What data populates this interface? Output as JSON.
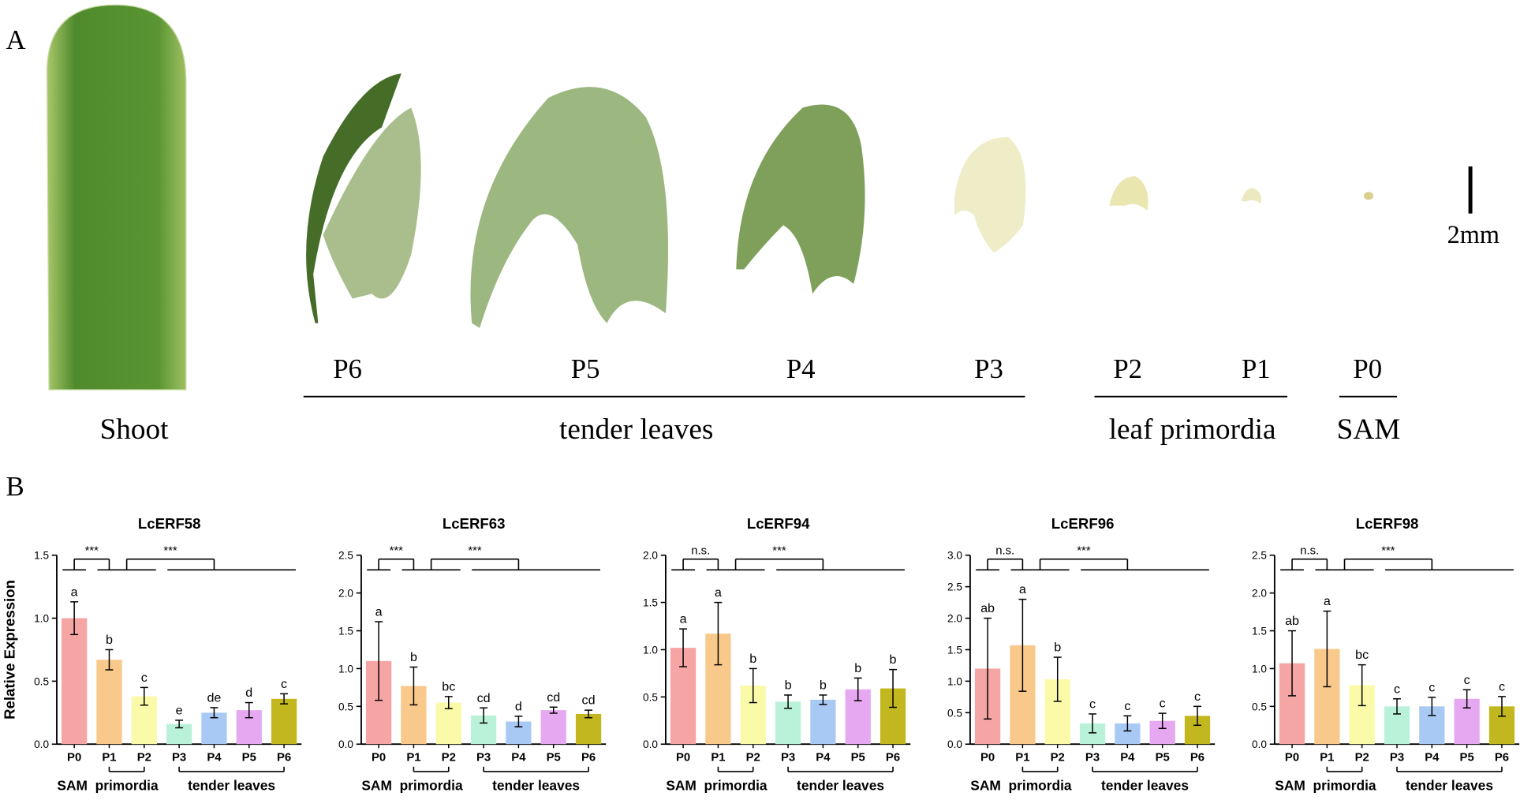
{
  "panel_a": {
    "label": "A",
    "scale_bar": "2mm",
    "stage_labels": [
      "P6",
      "P5",
      "P4",
      "P3",
      "P2",
      "P1",
      "P0"
    ],
    "group_labels": [
      "Shoot",
      "tender leaves",
      "leaf primordia",
      "SAM"
    ]
  },
  "panel_b": {
    "label": "B"
  },
  "chart_data": [
    {
      "type": "bar",
      "title": "LcERF58",
      "y_label": "Relative Expression",
      "categories": [
        "P0",
        "P1",
        "P2",
        "P3",
        "P4",
        "P5",
        "P6"
      ],
      "values": [
        1.0,
        0.67,
        0.38,
        0.16,
        0.25,
        0.27,
        0.36
      ],
      "errors": [
        0.13,
        0.08,
        0.07,
        0.03,
        0.04,
        0.06,
        0.04
      ],
      "letters": [
        "a",
        "b",
        "c",
        "e",
        "de",
        "d",
        "c"
      ],
      "colors": [
        "#f6a5a5",
        "#f9c98c",
        "#fbfaa9",
        "#b9f1d9",
        "#a9c9f5",
        "#e6a9f1",
        "#c3b71f"
      ],
      "ylim": [
        0,
        1.5
      ],
      "yticks": [
        {
          "value": 0,
          "label": "0.0"
        },
        0.5,
        {
          "value": 1,
          "label": "1.0"
        },
        1.5
      ],
      "significance": [
        "***",
        "***"
      ],
      "group_labels": [
        "SAM",
        "primordia",
        "tender leaves"
      ]
    },
    {
      "type": "bar",
      "title": "LcERF63",
      "categories": [
        "P0",
        "P1",
        "P2",
        "P3",
        "P4",
        "P5",
        "P6"
      ],
      "values": [
        1.1,
        0.77,
        0.55,
        0.38,
        0.3,
        0.45,
        0.4
      ],
      "errors": [
        0.52,
        0.25,
        0.08,
        0.1,
        0.07,
        0.04,
        0.05
      ],
      "letters": [
        "a",
        "b",
        "bc",
        "cd",
        "d",
        "cd",
        "cd"
      ],
      "colors": [
        "#f6a5a5",
        "#f9c98c",
        "#fbfaa9",
        "#b9f1d9",
        "#a9c9f5",
        "#e6a9f1",
        "#c3b71f"
      ],
      "ylim": [
        0,
        2.5
      ],
      "yticks": [
        {
          "value": 0,
          "label": "0.0"
        },
        0.5,
        {
          "value": 1,
          "label": "1.0"
        },
        1.5,
        {
          "value": 2,
          "label": "2.0"
        },
        2.5
      ],
      "significance": [
        "***",
        "***"
      ],
      "group_labels": [
        "SAM",
        "primordia",
        "tender leaves"
      ]
    },
    {
      "type": "bar",
      "title": "LcERF94",
      "categories": [
        "P0",
        "P1",
        "P2",
        "P3",
        "P4",
        "P5",
        "P6"
      ],
      "values": [
        1.02,
        1.17,
        0.62,
        0.45,
        0.47,
        0.58,
        0.59
      ],
      "errors": [
        0.2,
        0.33,
        0.18,
        0.07,
        0.05,
        0.12,
        0.2
      ],
      "letters": [
        "a",
        "a",
        "b",
        "b",
        "b",
        "b",
        "b"
      ],
      "colors": [
        "#f6a5a5",
        "#f9c98c",
        "#fbfaa9",
        "#b9f1d9",
        "#a9c9f5",
        "#e6a9f1",
        "#c3b71f"
      ],
      "ylim": [
        0,
        2
      ],
      "yticks": [
        {
          "value": 0,
          "label": "0.0"
        },
        0.5,
        {
          "value": 1,
          "label": "1.0"
        },
        1.5,
        {
          "value": 2,
          "label": "2.0"
        }
      ],
      "significance": [
        "n.s.",
        "***"
      ],
      "group_labels": [
        "SAM",
        "primordia",
        "tender leaves"
      ]
    },
    {
      "type": "bar",
      "title": "LcERF96",
      "categories": [
        "P0",
        "P1",
        "P2",
        "P3",
        "P4",
        "P5",
        "P6"
      ],
      "values": [
        1.2,
        1.57,
        1.03,
        0.33,
        0.33,
        0.37,
        0.45
      ],
      "errors": [
        0.8,
        0.73,
        0.35,
        0.15,
        0.12,
        0.12,
        0.15
      ],
      "letters": [
        "ab",
        "a",
        "b",
        "c",
        "c",
        "c",
        "c"
      ],
      "colors": [
        "#f6a5a5",
        "#f9c98c",
        "#fbfaa9",
        "#b9f1d9",
        "#a9c9f5",
        "#e6a9f1",
        "#c3b71f"
      ],
      "ylim": [
        0,
        3
      ],
      "yticks": [
        {
          "value": 0,
          "label": "0.0"
        },
        0.5,
        {
          "value": 1,
          "label": "1.0"
        },
        1.5,
        {
          "value": 2,
          "label": "2.0"
        },
        2.5,
        {
          "value": 3,
          "label": "3.0"
        }
      ],
      "significance": [
        "n.s.",
        "***"
      ],
      "group_labels": [
        "SAM",
        "primordia",
        "tender leaves"
      ]
    },
    {
      "type": "bar",
      "title": "LcERF98",
      "categories": [
        "P0",
        "P1",
        "P2",
        "P3",
        "P4",
        "P5",
        "P6"
      ],
      "values": [
        1.07,
        1.26,
        0.78,
        0.5,
        0.5,
        0.6,
        0.5
      ],
      "errors": [
        0.43,
        0.5,
        0.27,
        0.1,
        0.12,
        0.12,
        0.13
      ],
      "letters": [
        "ab",
        "a",
        "bc",
        "c",
        "c",
        "c",
        "c"
      ],
      "colors": [
        "#f6a5a5",
        "#f9c98c",
        "#fbfaa9",
        "#b9f1d9",
        "#a9c9f5",
        "#e6a9f1",
        "#c3b71f"
      ],
      "ylim": [
        0,
        2.5
      ],
      "yticks": [
        {
          "value": 0,
          "label": "0.0"
        },
        0.5,
        {
          "value": 1,
          "label": "1.0"
        },
        1.5,
        {
          "value": 2,
          "label": "2.0"
        },
        2.5
      ],
      "significance": [
        "n.s.",
        "***"
      ],
      "group_labels": [
        "SAM",
        "primordia",
        "tender leaves"
      ]
    }
  ]
}
